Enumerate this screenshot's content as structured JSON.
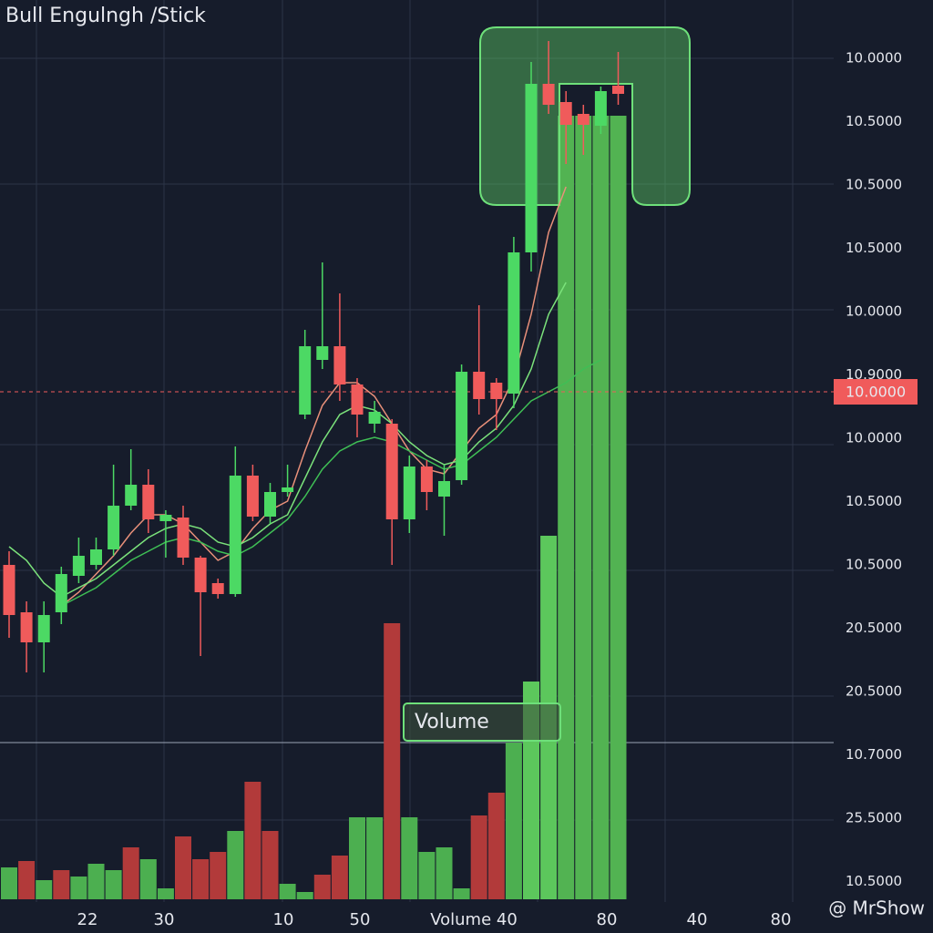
{
  "chart_data": {
    "type": "candlestick",
    "title": "Bull Engulngh /Stick",
    "watermark": "@ MrShow",
    "annotation": "Volume",
    "up_color": "#4cd964",
    "down_color": "#f05b5b",
    "ylim": [
      0,
      785
    ],
    "open": [
      195,
      143,
      110,
      143,
      183,
      195,
      212,
      260,
      283,
      243,
      247,
      203,
      175,
      163,
      293,
      248,
      275,
      360,
      420,
      435,
      393,
      350,
      350,
      245,
      303,
      270,
      288,
      407,
      395,
      383,
      538,
      723,
      703,
      690,
      677,
      721
    ],
    "close": [
      140,
      110,
      140,
      185,
      205,
      212,
      260,
      283,
      245,
      250,
      203,
      165,
      163,
      293,
      248,
      275,
      280,
      435,
      435,
      393,
      360,
      363,
      245,
      303,
      275,
      287,
      407,
      377,
      377,
      538,
      723,
      700,
      678,
      678,
      715,
      712
    ],
    "high": [
      210,
      155,
      155,
      193,
      225,
      225,
      305,
      322,
      300,
      255,
      260,
      205,
      180,
      325,
      305,
      285,
      305,
      453,
      527,
      493,
      400,
      375,
      355,
      315,
      310,
      305,
      415,
      480,
      400,
      555,
      747,
      770,
      715,
      700,
      720,
      758
    ],
    "low": [
      115,
      77,
      77,
      130,
      175,
      190,
      205,
      255,
      230,
      203,
      195,
      95,
      158,
      160,
      243,
      240,
      270,
      355,
      410,
      375,
      335,
      340,
      195,
      230,
      255,
      227,
      283,
      360,
      343,
      367,
      517,
      690,
      635,
      645,
      668,
      700
    ],
    "series": [
      {
        "name": "MA fast",
        "color": "#e8907a",
        "values": [
          null,
          null,
          null,
          150,
          165,
          185,
          205,
          230,
          250,
          250,
          240,
          220,
          200,
          210,
          235,
          255,
          265,
          320,
          370,
          395,
          395,
          380,
          350,
          320,
          300,
          295,
          320,
          345,
          360,
          400,
          470,
          560,
          610,
          null,
          null,
          null
        ]
      },
      {
        "name": "MA mid",
        "color": "#7be27b",
        "values": [
          215,
          200,
          175,
          160,
          170,
          180,
          195,
          210,
          225,
          235,
          240,
          235,
          220,
          215,
          225,
          240,
          250,
          290,
          330,
          360,
          370,
          365,
          350,
          330,
          315,
          305,
          310,
          330,
          345,
          370,
          410,
          470,
          505,
          null,
          null,
          null
        ]
      },
      {
        "name": "MA slow",
        "color": "#3fbf55",
        "values": [
          null,
          null,
          null,
          150,
          160,
          170,
          185,
          200,
          210,
          220,
          225,
          220,
          210,
          205,
          215,
          230,
          245,
          270,
          300,
          320,
          330,
          335,
          330,
          320,
          310,
          300,
          305,
          320,
          335,
          355,
          375,
          385,
          395,
          410,
          420,
          null
        ]
      }
    ],
    "volume": {
      "vlim": [
        0,
        987
      ],
      "values": [
        35,
        42,
        21,
        32,
        25,
        39,
        32,
        57,
        44,
        12,
        69,
        44,
        52,
        75,
        129,
        75,
        17,
        8,
        27,
        48,
        90,
        90,
        303,
        90,
        52,
        57,
        12,
        92,
        117,
        172,
        239,
        399,
        860,
        860,
        860,
        860
      ],
      "colors": [
        "#4caf50",
        "#b23a3a",
        "#4caf50",
        "#b23a3a",
        "#4caf50",
        "#4caf50",
        "#4caf50",
        "#b23a3a",
        "#4caf50",
        "#4caf50",
        "#b23a3a",
        "#b23a3a",
        "#b23a3a",
        "#4caf50",
        "#b23a3a",
        "#b23a3a",
        "#4caf50",
        "#4caf50",
        "#b23a3a",
        "#b23a3a",
        "#4caf50",
        "#4caf50",
        "#b23a3a",
        "#4caf50",
        "#4caf50",
        "#4caf50",
        "#4caf50",
        "#b23a3a",
        "#b23a3a",
        "#4caf50",
        "#5cc75c",
        "#5cc75c",
        "#52b352",
        "#52b352",
        "#52b352",
        "#52b352"
      ]
    },
    "current_price": {
      "value": 385,
      "label": "10.0000",
      "color": "#f05b5b"
    },
    "y_axis_labels": [
      "10.0000",
      "10.5000",
      "10.5000",
      "10.5000",
      "10.0000",
      "10.9000",
      "10.0000",
      "10.5000",
      "10.5000",
      "20.5000",
      "20.5000",
      "10.7000",
      "25.5000",
      "10.5000"
    ],
    "x_axis_labels": [
      "22",
      "30",
      "10",
      "50",
      "Volume 40",
      "80",
      "40",
      "80"
    ]
  }
}
